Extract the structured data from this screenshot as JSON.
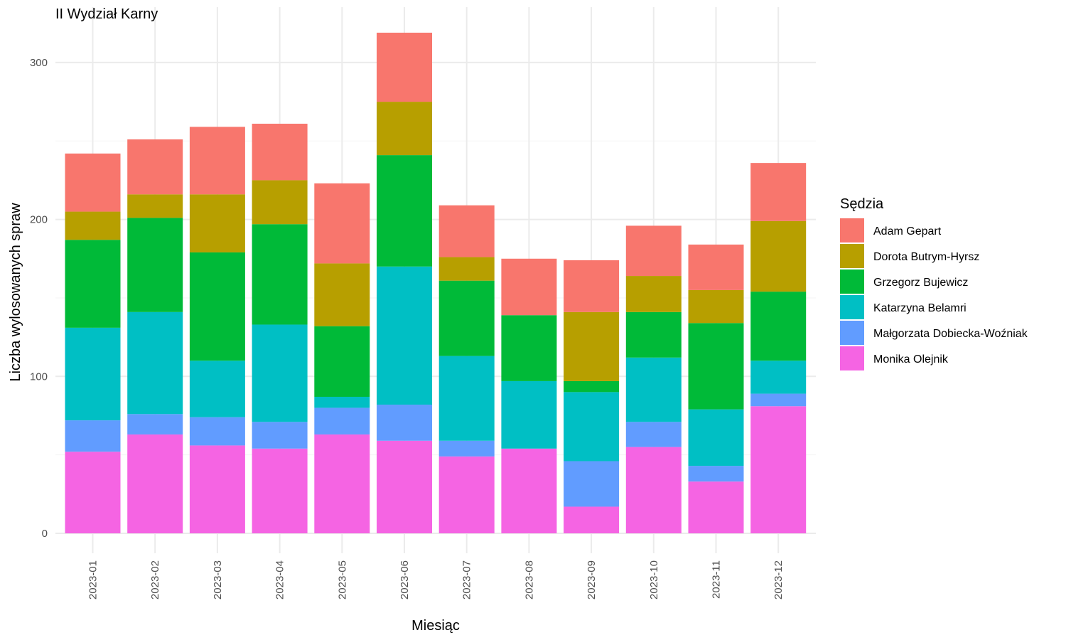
{
  "chart_data": {
    "type": "bar",
    "stacked": true,
    "title": "II Wydział Karny",
    "xlabel": "Miesiąc",
    "ylabel": "Liczba wylosowanych spraw",
    "ylim": [
      0,
      320
    ],
    "yticks": [
      0,
      100,
      200,
      300
    ],
    "grid": true,
    "legend": {
      "title": "Sędzia",
      "placement": "right"
    },
    "categories": [
      "2023-01",
      "2023-02",
      "2023-03",
      "2023-04",
      "2023-05",
      "2023-06",
      "2023-07",
      "2023-08",
      "2023-09",
      "2023-10",
      "2023-11",
      "2023-12"
    ],
    "series": [
      {
        "name": "Monika Olejnik",
        "color": "#F564E3",
        "values": [
          52,
          63,
          56,
          54,
          63,
          59,
          49,
          54,
          17,
          55,
          33,
          81
        ]
      },
      {
        "name": "Małgorzata Dobiecka-Woźniak",
        "color": "#619CFF",
        "values": [
          20,
          13,
          18,
          17,
          17,
          23,
          10,
          0,
          29,
          16,
          10,
          8
        ]
      },
      {
        "name": "Katarzyna Belamri",
        "color": "#00BFC4",
        "values": [
          59,
          65,
          36,
          62,
          7,
          88,
          54,
          43,
          44,
          41,
          36,
          21
        ]
      },
      {
        "name": "Grzegorz Bujewicz",
        "color": "#00BA38",
        "values": [
          56,
          60,
          69,
          64,
          45,
          71,
          48,
          42,
          7,
          29,
          55,
          44
        ]
      },
      {
        "name": "Dorota Butrym-Hyrsz",
        "color": "#B79F00",
        "values": [
          18,
          15,
          37,
          28,
          40,
          34,
          15,
          0,
          44,
          23,
          21,
          45
        ]
      },
      {
        "name": "Adam Gepart",
        "color": "#F8766D",
        "values": [
          37,
          35,
          43,
          36,
          51,
          44,
          33,
          36,
          33,
          32,
          29,
          37
        ]
      }
    ],
    "legend_order": [
      "Adam Gepart",
      "Dorota Butrym-Hyrsz",
      "Grzegorz Bujewicz",
      "Katarzyna Belamri",
      "Małgorzata Dobiecka-Woźniak",
      "Monika Olejnik"
    ]
  }
}
